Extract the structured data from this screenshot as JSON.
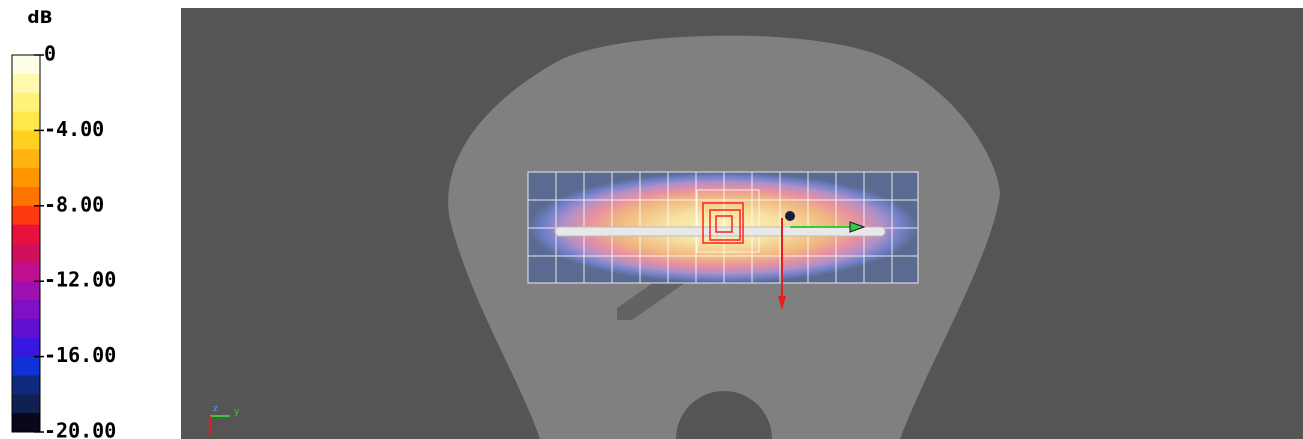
{
  "legend": {
    "title": "dB",
    "ticks": [
      "0",
      "-4.00",
      "-8.00",
      "-12.00",
      "-16.00",
      "-20.00"
    ]
  },
  "axes": {
    "z": "z",
    "y": "y"
  }
}
